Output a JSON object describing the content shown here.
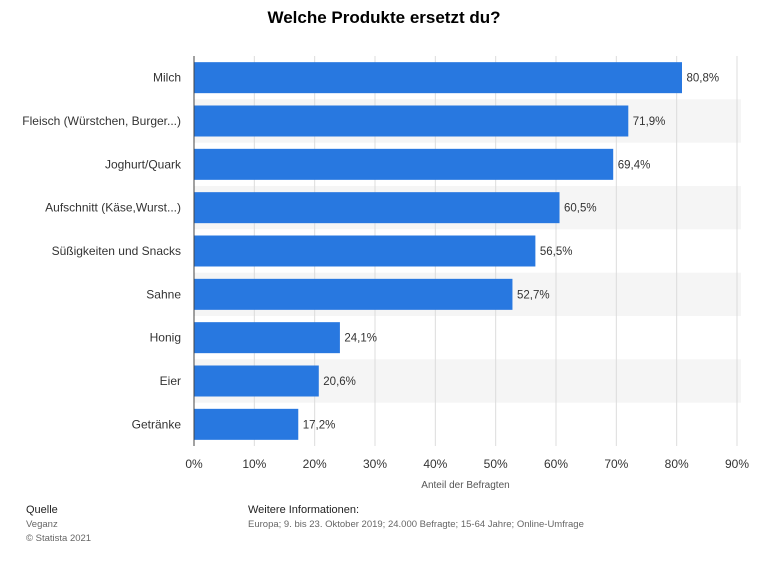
{
  "chart_data": {
    "type": "bar",
    "orientation": "horizontal",
    "title": "Welche Produkte ersetzt du?",
    "categories": [
      "Milch",
      "Fleisch (Würstchen, Burger...)",
      "Joghurt/Quark",
      "Aufschnitt (Käse,Wurst...)",
      "Süßigkeiten und Snacks",
      "Sahne",
      "Honig",
      "Eier",
      "Getränke"
    ],
    "values": [
      80.8,
      71.9,
      69.4,
      60.5,
      56.5,
      52.7,
      24.1,
      20.6,
      17.2
    ],
    "value_labels": [
      "80,8%",
      "71,9%",
      "69,4%",
      "60,5%",
      "56,5%",
      "52,7%",
      "24,1%",
      "20,6%",
      "17,2%"
    ],
    "xlim": [
      0,
      90
    ],
    "xticks": [
      0,
      10,
      20,
      30,
      40,
      50,
      60,
      70,
      80,
      90
    ],
    "xtick_labels": [
      "0%",
      "10%",
      "20%",
      "30%",
      "40%",
      "50%",
      "60%",
      "70%",
      "80%",
      "90%"
    ],
    "xlabel": "Anteil der Befragten",
    "ylabel": "",
    "grid": true,
    "bar_color": "#2878e0",
    "band_color": "#f5f5f5"
  },
  "footer": {
    "source_heading": "Quelle",
    "source_name": "Veganz",
    "copyright": "© Statista 2021",
    "info_heading": "Weitere Informationen:",
    "info_text": "Europa; 9. bis 23. Oktober 2019; 24.000 Befragte; 15-64 Jahre; Online-Umfrage"
  }
}
